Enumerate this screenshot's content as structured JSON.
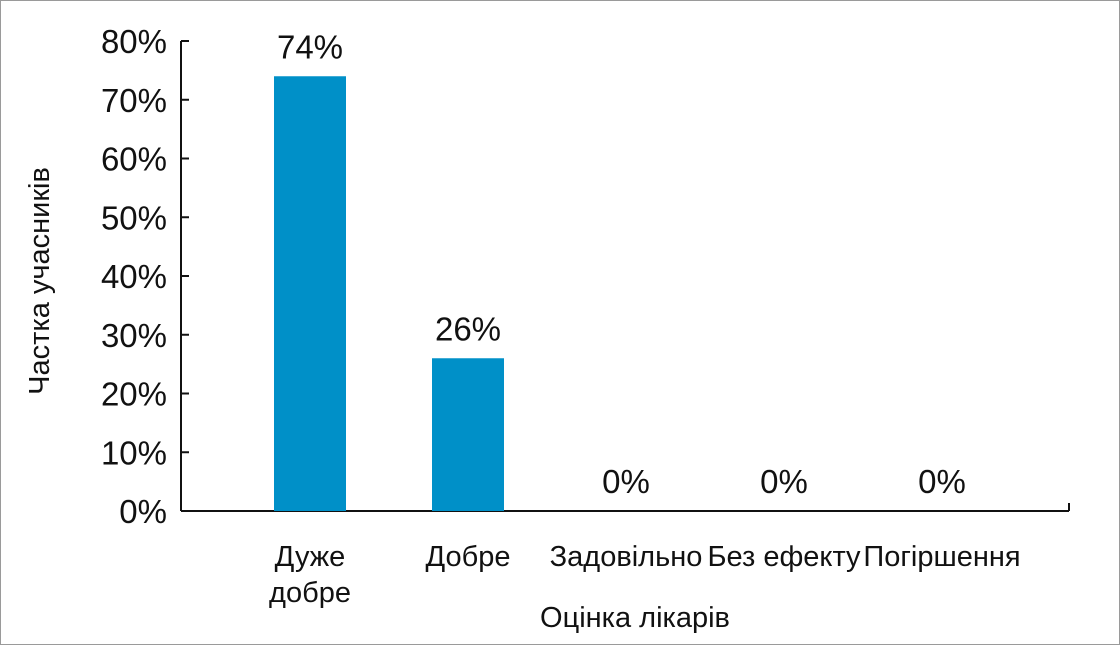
{
  "chart_data": {
    "type": "bar",
    "categories": [
      [
        "Дуже",
        "добре"
      ],
      [
        "Добре"
      ],
      [
        "Задовільно"
      ],
      [
        "Без ефекту"
      ],
      [
        "Погіршення"
      ]
    ],
    "values": [
      74,
      26,
      0,
      0,
      0
    ],
    "data_labels": [
      "74%",
      "26%",
      "0%",
      "0%",
      "0%"
    ],
    "xlabel": "Оцінка лікарів",
    "ylabel": "Частка учасників",
    "ylim": [
      0,
      80
    ],
    "yticks": [
      0,
      10,
      20,
      30,
      40,
      50,
      60,
      70,
      80
    ],
    "ytick_labels": [
      "0%",
      "10%",
      "20%",
      "30%",
      "40%",
      "50%",
      "60%",
      "70%",
      "80%"
    ],
    "bar_color": "#0090c8",
    "grid": false
  }
}
